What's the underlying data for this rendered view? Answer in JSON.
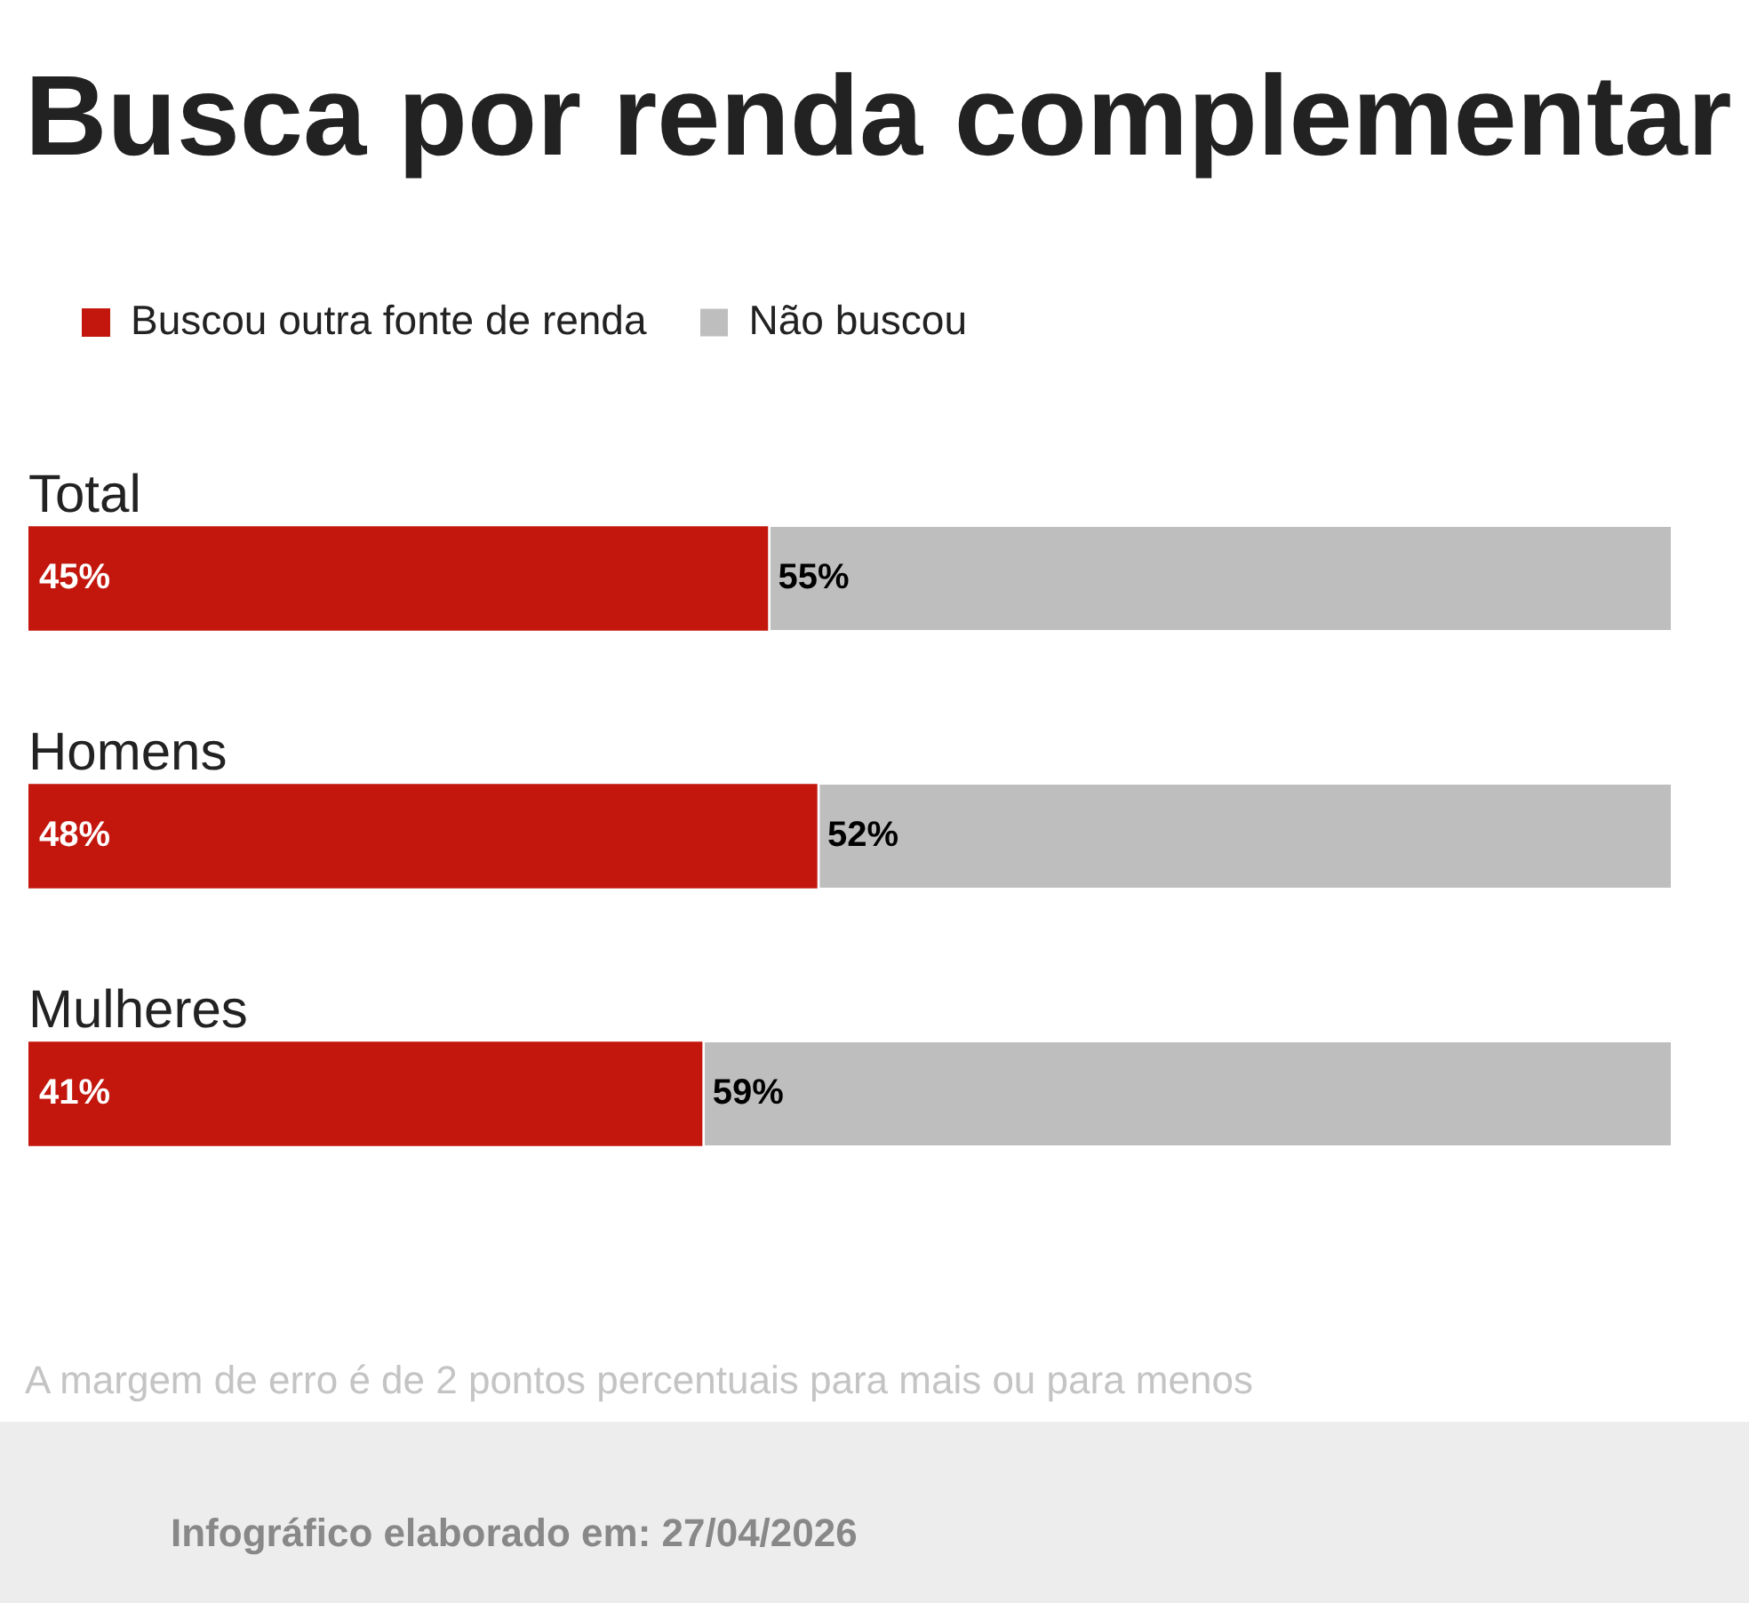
{
  "chart_data": {
    "type": "bar",
    "orientation": "horizontal",
    "stacked": true,
    "title": "Busca por renda complementar",
    "categories": [
      "Total",
      "Homens",
      "Mulheres"
    ],
    "series": [
      {
        "name": "Buscou outra fonte de renda",
        "color": "#c3170e",
        "values": [
          45,
          48,
          41
        ],
        "value_labels": [
          "45%",
          "48%",
          "41%"
        ]
      },
      {
        "name": "Não buscou",
        "color": "#bebebe",
        "values": [
          55,
          52,
          59
        ],
        "value_labels": [
          "55%",
          "52%",
          "59%"
        ]
      }
    ],
    "legend": "top left",
    "tick_labels": false,
    "annotations": [
      "A margem de erro é de 2 pontos percentuais para mais ou para menos",
      "Infográfico elaborado em: 27/04/2026"
    ]
  }
}
